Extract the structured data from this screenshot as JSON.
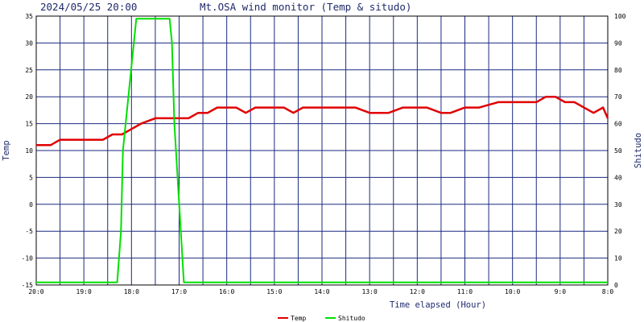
{
  "header": {
    "timestamp": "2024/05/25 20:00",
    "title": "Mt.OSA wind monitor (Temp & situdo)"
  },
  "chart_data": {
    "type": "line",
    "title": "Mt.OSA wind monitor (Temp & situdo)",
    "xlabel": "Time elapsed (Hour)",
    "ylabel_left": "Temp",
    "ylabel_right": "Shitudo",
    "ylim_left": [
      -15,
      35
    ],
    "ylim_right": [
      0,
      100
    ],
    "yticks_left": [
      "35",
      "30",
      "25",
      "20",
      "15",
      "10",
      "5",
      "0",
      "-5",
      "-10",
      "-15"
    ],
    "yticks_right": [
      "100",
      "90",
      "80",
      "70",
      "60",
      "50",
      "40",
      "30",
      "20",
      "10",
      "0"
    ],
    "xlim": [
      20,
      8
    ],
    "xticks": [
      {
        "x": 20,
        "label": "20:0"
      },
      {
        "x": 19,
        "label": "19:0"
      },
      {
        "x": 18,
        "label": "18:0"
      },
      {
        "x": 17,
        "label": "17:0"
      },
      {
        "x": 16,
        "label": "16:0"
      },
      {
        "x": 15,
        "label": "15:0"
      },
      {
        "x": 14,
        "label": "14:0"
      },
      {
        "x": 13,
        "label": "13:0"
      },
      {
        "x": 12,
        "label": "12:0"
      },
      {
        "x": 11,
        "label": "11:0"
      },
      {
        "x": 10,
        "label": "10:0"
      },
      {
        "x": 9,
        "label": "9:0"
      },
      {
        "x": 8,
        "label": "8:0"
      }
    ],
    "grid": true,
    "legend_position": "bottom-center",
    "series": [
      {
        "name": "Temp",
        "axis": "left",
        "color": "#e00000",
        "x": [
          20.0,
          19.7,
          19.5,
          19.2,
          18.8,
          18.6,
          18.4,
          18.2,
          18.0,
          17.8,
          17.5,
          17.2,
          17.0,
          16.8,
          16.6,
          16.4,
          16.2,
          16.0,
          15.8,
          15.6,
          15.4,
          15.0,
          14.8,
          14.6,
          14.4,
          14.0,
          13.6,
          13.3,
          13.0,
          12.6,
          12.3,
          12.0,
          11.8,
          11.5,
          11.3,
          11.0,
          10.7,
          10.3,
          10.0,
          9.7,
          9.5,
          9.3,
          9.1,
          8.9,
          8.7,
          8.5,
          8.3,
          8.1,
          8.0
        ],
        "values": [
          11,
          11,
          12,
          12,
          12,
          12,
          13,
          13,
          14,
          15,
          16,
          16,
          16,
          16,
          17,
          17,
          18,
          18,
          18,
          17,
          18,
          18,
          18,
          17,
          18,
          18,
          18,
          18,
          17,
          17,
          18,
          18,
          18,
          17,
          17,
          18,
          18,
          19,
          19,
          19,
          19,
          20,
          20,
          19,
          19,
          18,
          17,
          18,
          16
        ]
      },
      {
        "name": "Shitudo",
        "axis": "right",
        "color": "#00e000",
        "x": [
          20.0,
          18.3,
          18.22,
          18.18,
          17.9,
          17.5,
          17.2,
          17.15,
          17.1,
          16.9,
          16.5,
          8.0
        ],
        "values": [
          1,
          1,
          20,
          50,
          99,
          99,
          99,
          90,
          60,
          1,
          1,
          1
        ]
      }
    ]
  }
}
